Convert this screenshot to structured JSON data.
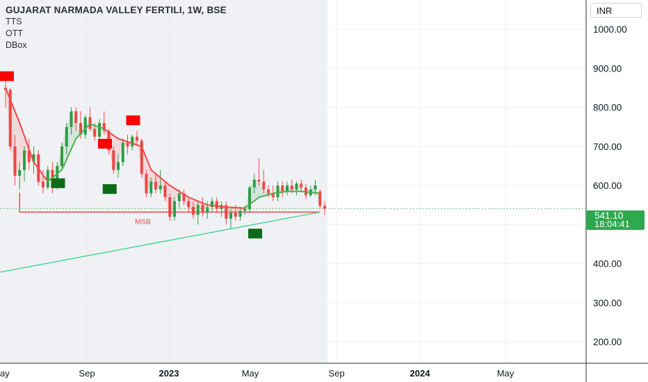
{
  "header": {
    "symbol_title": "GUJARAT NARMADA VALLEY FERTILI, 1W, BSE",
    "indicators": [
      "TTS",
      "OTT",
      "DBox"
    ],
    "currency": "INR"
  },
  "last_price": {
    "value": "541.10",
    "countdown": "18:04:41",
    "color": "#2fa84f"
  },
  "colors": {
    "up": "#2e9e44",
    "down": "#ef4747",
    "support_line": "#33d18a",
    "shade": "#f0f1f4",
    "text": "#131722",
    "grid": "#eceff3"
  },
  "chart_data": {
    "type": "candlestick",
    "title": "GUJARAT NARMADA VALLEY FERTILI, 1W, BSE",
    "y_axis": {
      "range": [
        145,
        1075
      ],
      "ticks": [
        200,
        300,
        400,
        500,
        600,
        700,
        800,
        900,
        1000
      ],
      "tick_labels": [
        "200.00",
        "300.00",
        "400.00",
        "500.00",
        "600.00",
        "700.00",
        "800.00",
        "900.00",
        "1000.00"
      ],
      "side": "right"
    },
    "x_axis": {
      "labels": [
        "ay",
        "Sep",
        "2023",
        "May",
        "Sep",
        "2024",
        "May"
      ],
      "bold_labels": [
        "2023",
        "2024"
      ]
    },
    "candles": [
      [
        850,
        870,
        800,
        845
      ],
      [
        845,
        850,
        690,
        700
      ],
      [
        700,
        730,
        600,
        625
      ],
      [
        625,
        660,
        590,
        640
      ],
      [
        640,
        700,
        610,
        690
      ],
      [
        690,
        720,
        640,
        660
      ],
      [
        660,
        700,
        630,
        680
      ],
      [
        680,
        690,
        600,
        610
      ],
      [
        610,
        640,
        580,
        595
      ],
      [
        595,
        650,
        590,
        640
      ],
      [
        640,
        660,
        580,
        600
      ],
      [
        600,
        660,
        590,
        650
      ],
      [
        650,
        710,
        640,
        700
      ],
      [
        700,
        760,
        680,
        750
      ],
      [
        750,
        800,
        730,
        790
      ],
      [
        790,
        800,
        740,
        760
      ],
      [
        760,
        790,
        720,
        730
      ],
      [
        730,
        780,
        720,
        775
      ],
      [
        775,
        800,
        740,
        745
      ],
      [
        745,
        760,
        715,
        725
      ],
      [
        725,
        770,
        700,
        760
      ],
      [
        760,
        790,
        730,
        740
      ],
      [
        740,
        745,
        680,
        690
      ],
      [
        690,
        700,
        630,
        640
      ],
      [
        640,
        680,
        620,
        660
      ],
      [
        660,
        720,
        650,
        710
      ],
      [
        710,
        730,
        680,
        700
      ],
      [
        700,
        730,
        690,
        725
      ],
      [
        725,
        740,
        700,
        715
      ],
      [
        715,
        720,
        620,
        630
      ],
      [
        630,
        640,
        570,
        580
      ],
      [
        580,
        620,
        570,
        610
      ],
      [
        610,
        630,
        580,
        590
      ],
      [
        590,
        640,
        580,
        600
      ],
      [
        600,
        610,
        560,
        570
      ],
      [
        570,
        580,
        510,
        520
      ],
      [
        520,
        570,
        510,
        560
      ],
      [
        560,
        590,
        540,
        580
      ],
      [
        580,
        590,
        550,
        560
      ],
      [
        560,
        570,
        530,
        545
      ],
      [
        545,
        560,
        515,
        525
      ],
      [
        525,
        560,
        500,
        550
      ],
      [
        550,
        570,
        520,
        530
      ],
      [
        530,
        560,
        515,
        545
      ],
      [
        545,
        570,
        530,
        560
      ],
      [
        560,
        570,
        530,
        540
      ],
      [
        540,
        560,
        520,
        550
      ],
      [
        550,
        560,
        500,
        515
      ],
      [
        515,
        540,
        490,
        530
      ],
      [
        530,
        550,
        510,
        520
      ],
      [
        520,
        545,
        510,
        535
      ],
      [
        535,
        550,
        525,
        540
      ],
      [
        540,
        600,
        530,
        595
      ],
      [
        595,
        630,
        580,
        615
      ],
      [
        615,
        670,
        600,
        610
      ],
      [
        610,
        640,
        580,
        590
      ],
      [
        590,
        600,
        570,
        580
      ],
      [
        580,
        600,
        560,
        570
      ],
      [
        570,
        610,
        560,
        600
      ],
      [
        600,
        610,
        570,
        585
      ],
      [
        585,
        610,
        575,
        600
      ],
      [
        600,
        615,
        580,
        590
      ],
      [
        590,
        610,
        575,
        605
      ],
      [
        605,
        615,
        585,
        595
      ],
      [
        595,
        605,
        565,
        575
      ],
      [
        575,
        600,
        570,
        590
      ],
      [
        590,
        615,
        575,
        600
      ],
      [
        585,
        590,
        540,
        548
      ],
      [
        548,
        560,
        525,
        541
      ]
    ],
    "tts_line": {
      "down_points": [
        [
          0,
          850
        ],
        [
          3,
          760
        ],
        [
          6,
          660
        ],
        [
          9,
          610
        ]
      ],
      "up_points": [
        [
          9,
          610
        ],
        [
          12,
          640
        ],
        [
          15,
          720
        ],
        [
          18,
          758
        ],
        [
          21,
          745
        ]
      ],
      "down2_points": [
        [
          21,
          745
        ],
        [
          24,
          720
        ],
        [
          29,
          700
        ],
        [
          31,
          640
        ],
        [
          35,
          600
        ],
        [
          39,
          570
        ],
        [
          43,
          550
        ],
        [
          47,
          545
        ],
        [
          51,
          542
        ]
      ],
      "up2_points": [
        [
          51,
          542
        ],
        [
          54,
          570
        ],
        [
          57,
          580
        ],
        [
          60,
          585
        ],
        [
          63,
          585
        ],
        [
          67,
          580
        ]
      ]
    },
    "support_line": {
      "from": [
        -7,
        365
      ],
      "to": [
        67,
        532
      ]
    },
    "msb_line": {
      "y": 532,
      "from": 3,
      "to": 67,
      "label": "MSB"
    },
    "dbox_markers": [
      {
        "idx": -6,
        "y": 880,
        "type": "sell"
      },
      {
        "idx": 10,
        "y": 606,
        "type": "buy"
      },
      {
        "idx": 20,
        "y": 707,
        "type": "sell"
      },
      {
        "idx": 21,
        "y": 591,
        "type": "buy"
      },
      {
        "idx": 26,
        "y": 767,
        "type": "sell"
      },
      {
        "idx": 52,
        "y": 477,
        "type": "buy"
      }
    ],
    "last_price_line": 541.1,
    "grid": true
  }
}
